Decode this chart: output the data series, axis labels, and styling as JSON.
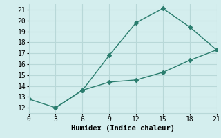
{
  "line1_x": [
    0,
    3,
    6,
    9,
    12,
    15,
    18,
    21
  ],
  "line1_y": [
    12.8,
    12.0,
    13.6,
    16.8,
    19.8,
    21.1,
    19.4,
    17.3
  ],
  "line2_x": [
    3,
    6,
    9,
    12,
    15,
    18,
    21
  ],
  "line2_y": [
    12.0,
    13.6,
    14.35,
    14.55,
    15.25,
    16.35,
    17.3
  ],
  "color": "#2a7d6e",
  "bg_color": "#d4eeee",
  "grid_color": "#b8d8d8",
  "xlabel": "Humidex (Indice chaleur)",
  "xlim": [
    0,
    21
  ],
  "ylim": [
    11.5,
    21.5
  ],
  "xticks": [
    0,
    3,
    6,
    9,
    12,
    15,
    18,
    21
  ],
  "yticks": [
    12,
    13,
    14,
    15,
    16,
    17,
    18,
    19,
    20,
    21
  ],
  "marker": "D",
  "markersize": 3,
  "linewidth": 1.0,
  "xlabel_fontsize": 7.5,
  "tick_fontsize": 7
}
